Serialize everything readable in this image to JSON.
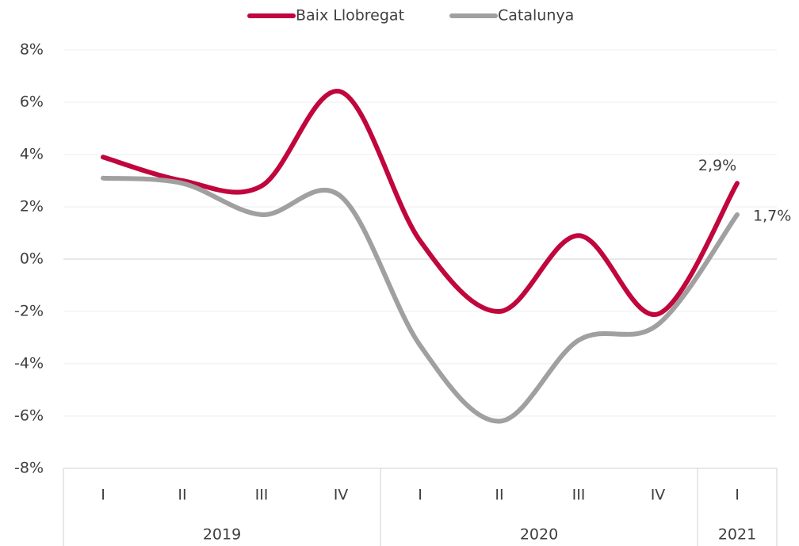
{
  "chart_data": {
    "type": "line",
    "categories": [
      "I",
      "II",
      "III",
      "IV",
      "I",
      "II",
      "III",
      "IV",
      "I"
    ],
    "groups": [
      {
        "label": "2019",
        "span": 4
      },
      {
        "label": "2020",
        "span": 4
      },
      {
        "label": "2021",
        "span": 1
      }
    ],
    "series": [
      {
        "name": "Baix Llobregat",
        "color": "#c0063d",
        "values": [
          3.9,
          3.0,
          2.8,
          6.4,
          0.7,
          -2.0,
          0.9,
          -2.1,
          2.9
        ],
        "value_labels": [
          null,
          null,
          null,
          null,
          null,
          null,
          null,
          null,
          "2,9%"
        ]
      },
      {
        "name": "Catalunya",
        "color": "#a0a0a0",
        "values": [
          3.1,
          2.9,
          1.7,
          2.4,
          -3.3,
          -6.2,
          -3.1,
          -2.5,
          1.7
        ],
        "value_labels": [
          null,
          null,
          null,
          null,
          null,
          null,
          null,
          null,
          "1,7%"
        ]
      }
    ],
    "ylim": [
      -8,
      8
    ],
    "yticks": [
      {
        "value": -8,
        "label": "-8%"
      },
      {
        "value": -6,
        "label": "-6%"
      },
      {
        "value": -4,
        "label": "-4%"
      },
      {
        "value": -2,
        "label": "-2%"
      },
      {
        "value": 0,
        "label": "0%"
      },
      {
        "value": 2,
        "label": "2%"
      },
      {
        "value": 4,
        "label": "4%"
      },
      {
        "value": 6,
        "label": "6%"
      },
      {
        "value": 8,
        "label": "8%"
      }
    ],
    "grid": true,
    "legend": "top"
  }
}
